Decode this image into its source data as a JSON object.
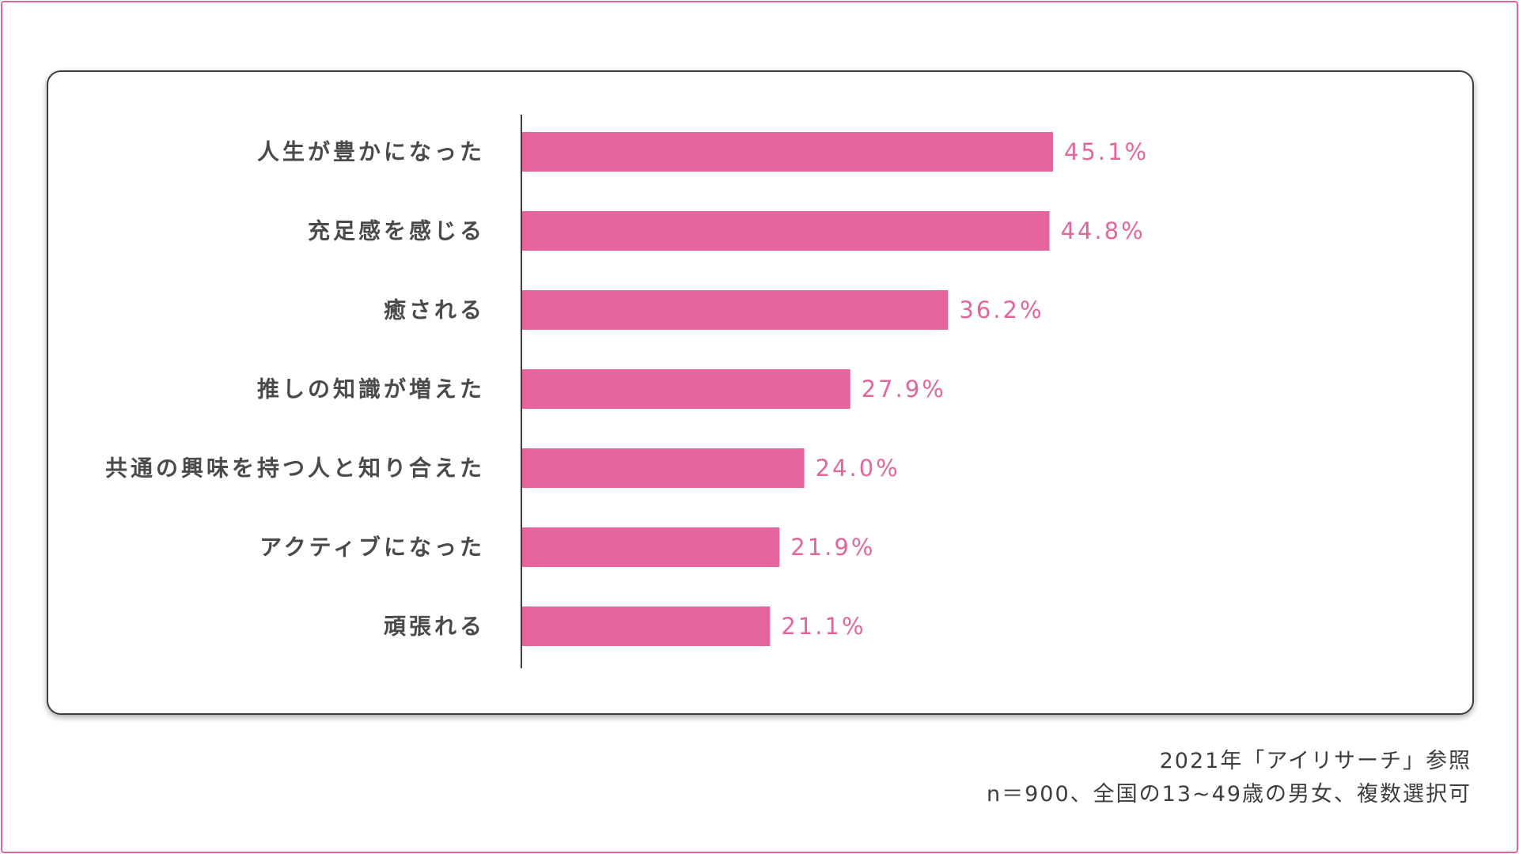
{
  "chart_data": {
    "type": "bar",
    "orientation": "horizontal",
    "categories": [
      "人生が豊かになった",
      "充足感を感じる",
      "癒される",
      "推しの知識が増えた",
      "共通の興味を持つ人と知り合えた",
      "アクティブになった",
      "頑張れる"
    ],
    "values": [
      45.1,
      44.8,
      36.2,
      27.9,
      24.0,
      21.9,
      21.1
    ],
    "value_labels": [
      "45.1%",
      "44.8%",
      "36.2%",
      "27.9%",
      "24.0%",
      "21.9%",
      "21.1%"
    ],
    "unit": "%",
    "xlim": [
      0,
      100
    ],
    "grid": false,
    "legend": "none",
    "bar_color": "#e6649e",
    "value_label_color": "#e2669e"
  },
  "footnote": {
    "source": "2021年「アイリサーチ」参照",
    "sample": "n＝900、全国の13~49歳の男女、複数選択可"
  },
  "colors": {
    "frame_border": "#e2669e",
    "card_border": "#3d3d3d",
    "text": "#4a4a4a"
  }
}
